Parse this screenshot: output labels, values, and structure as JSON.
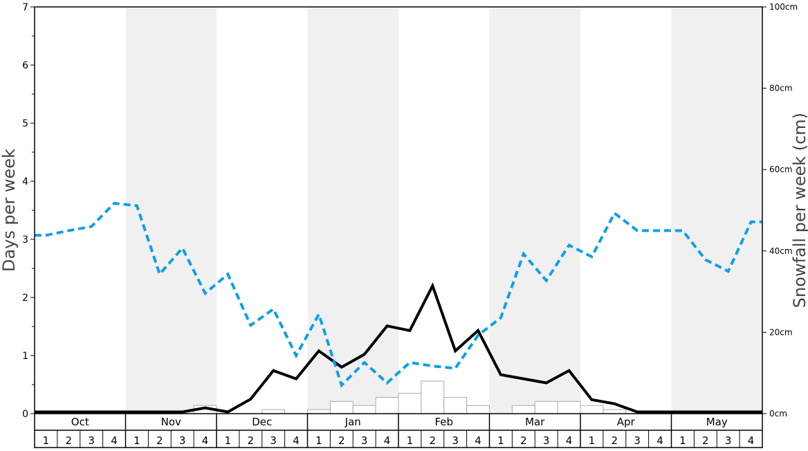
{
  "chart_data": {
    "type": "line",
    "ylabel_left": "Days per week",
    "ylabel_right": "Snowfall per week (cm)",
    "ylim_left": [
      0,
      7
    ],
    "yticks_left": [
      "0",
      "1",
      "2",
      "3",
      "4",
      "5",
      "6",
      "7"
    ],
    "ylim_right": [
      0,
      100
    ],
    "yticks_right": [
      "0cm",
      "20cm",
      "40cm",
      "60cm",
      "80cm",
      "100cm"
    ],
    "months": [
      "Oct",
      "Nov",
      "Dec",
      "Jan",
      "Feb",
      "Mar",
      "Apr",
      "May"
    ],
    "weeks": [
      "1",
      "2",
      "3",
      "4"
    ],
    "shaded_months": [
      "Nov",
      "Jan",
      "Mar",
      "May"
    ],
    "colors": {
      "shade": "#f0f0f0",
      "solid_line": "#000000",
      "dashed_line": "#0ea0e6",
      "bars_fill": "#ffffff",
      "bars_stroke": "#aaaaaa"
    },
    "series": [
      {
        "axis": "left",
        "style": "solid",
        "values": [
          0.03,
          0.03,
          0.03,
          0.03,
          0.03,
          0.03,
          0.03,
          0.1,
          0.03,
          0.25,
          0.74,
          0.6,
          1.08,
          0.8,
          1.02,
          1.51,
          1.43,
          2.2,
          1.08,
          1.43,
          0.67,
          0.6,
          0.53,
          0.74,
          0.24,
          0.17,
          0.03,
          0.03,
          0.03,
          0.03,
          0.03,
          0.03
        ]
      },
      {
        "axis": "left",
        "style": "dashed",
        "values": [
          3.07,
          3.15,
          3.22,
          3.62,
          3.58,
          2.4,
          2.85,
          2.07,
          2.4,
          1.52,
          1.8,
          1.0,
          1.71,
          0.49,
          0.88,
          0.53,
          0.88,
          0.82,
          0.78,
          1.35,
          1.65,
          2.75,
          2.29,
          2.9,
          2.7,
          3.45,
          3.15,
          3.15,
          3.15,
          2.65,
          2.45,
          3.3
        ]
      },
      {
        "axis": "right",
        "style": "bars",
        "values": [
          0,
          0,
          0,
          0,
          0,
          0,
          0,
          2,
          0,
          0,
          1,
          0,
          1,
          3,
          2,
          4,
          5,
          8,
          4,
          2,
          0,
          2,
          3,
          3,
          2,
          1,
          0,
          0,
          0,
          0,
          0,
          0
        ]
      }
    ]
  }
}
